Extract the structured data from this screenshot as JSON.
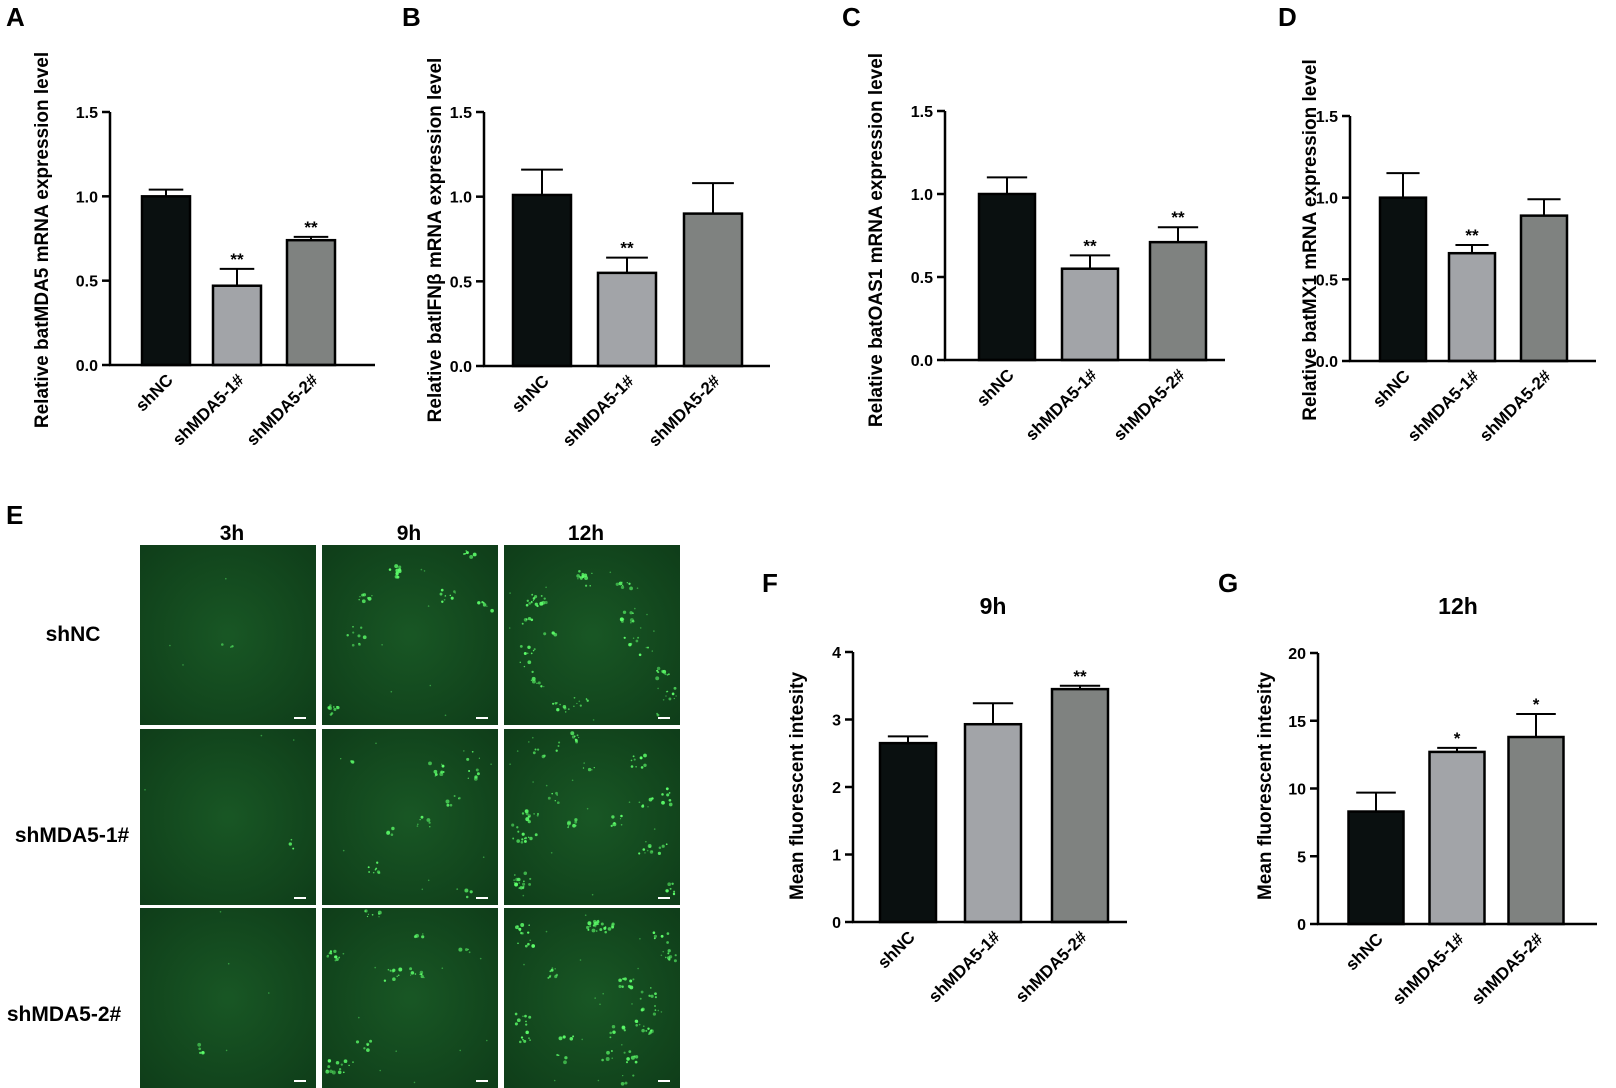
{
  "chart_data": [
    {
      "panel": "A",
      "type": "bar",
      "categories": [
        "shNC",
        "shMDA5-1#",
        "shMDA5-2#"
      ],
      "values": [
        1.0,
        0.47,
        0.74
      ],
      "errors": [
        0.04,
        0.1,
        0.02
      ],
      "significance": [
        "",
        "**",
        "**"
      ],
      "ylabel": "Relative batMDA5 mRNA expression level",
      "ylim": [
        0,
        1.5
      ],
      "yticks": [
        "0.0",
        "0.5",
        "1.0",
        "1.5"
      ],
      "colors": [
        "#0a1010",
        "#a2a4a8",
        "#7f8280"
      ]
    },
    {
      "panel": "B",
      "type": "bar",
      "categories": [
        "shNC",
        "shMDA5-1#",
        "shMDA5-2#"
      ],
      "values": [
        1.01,
        0.55,
        0.9
      ],
      "errors": [
        0.15,
        0.09,
        0.18
      ],
      "significance": [
        "",
        "**",
        ""
      ],
      "ylabel": "Relative batIFNβ mRNA expression level",
      "ylim": [
        0,
        1.5
      ],
      "yticks": [
        "0.0",
        "0.5",
        "1.0",
        "1.5"
      ],
      "colors": [
        "#0a1010",
        "#a2a4a8",
        "#7f8280"
      ]
    },
    {
      "panel": "C",
      "type": "bar",
      "categories": [
        "shNC",
        "shMDA5-1#",
        "shMDA5-2#"
      ],
      "values": [
        1.0,
        0.55,
        0.71
      ],
      "errors": [
        0.1,
        0.08,
        0.09
      ],
      "significance": [
        "",
        "**",
        "**"
      ],
      "ylabel": "Relative  batOAS1 mRNA expression level",
      "ylim": [
        0,
        1.5
      ],
      "yticks": [
        "0.0",
        "0.5",
        "1.0",
        "1.5"
      ],
      "colors": [
        "#0a1010",
        "#a2a4a8",
        "#7f8280"
      ]
    },
    {
      "panel": "D",
      "type": "bar",
      "categories": [
        "shNC",
        "shMDA5-1#",
        "shMDA5-2#"
      ],
      "values": [
        1.0,
        0.66,
        0.89
      ],
      "errors": [
        0.15,
        0.05,
        0.1
      ],
      "significance": [
        "",
        "**",
        ""
      ],
      "ylabel": "Relative batMX1 mRNA expression level",
      "ylim": [
        0,
        1.5
      ],
      "yticks": [
        "0.0",
        "0.5",
        "1.0",
        "1.5"
      ],
      "colors": [
        "#0a1010",
        "#a2a4a8",
        "#7f8280"
      ]
    },
    {
      "panel": "F",
      "type": "bar",
      "title": "9h",
      "categories": [
        "shNC",
        "shMDA5-1#",
        "shMDA5-2#"
      ],
      "values": [
        2.65,
        2.93,
        3.45
      ],
      "errors": [
        0.1,
        0.31,
        0.05
      ],
      "significance": [
        "",
        "",
        "**"
      ],
      "ylabel": "Mean fluorescent intesity",
      "ylim": [
        0,
        4
      ],
      "yticks": [
        "0",
        "1",
        "2",
        "3",
        "4"
      ],
      "colors": [
        "#0a1010",
        "#a2a4a8",
        "#7f8280"
      ]
    },
    {
      "panel": "G",
      "type": "bar",
      "title": "12h",
      "categories": [
        "shNC",
        "shMDA5-1#",
        "shMDA5-2#"
      ],
      "values": [
        8.3,
        12.7,
        13.8
      ],
      "errors": [
        1.4,
        0.3,
        1.7
      ],
      "significance": [
        "",
        "*",
        "*"
      ],
      "ylabel": "Mean fluorescent intesity",
      "ylim": [
        0,
        20
      ],
      "yticks": [
        "0",
        "5",
        "10",
        "15",
        "20"
      ],
      "colors": [
        "#0a1010",
        "#a2a4a8",
        "#7f8280"
      ]
    }
  ],
  "panel_e": {
    "letter": "E",
    "columns": [
      "3h",
      "9h",
      "12h"
    ],
    "rows": [
      "shNC",
      "shMDA5-1#",
      "shMDA5-2#"
    ],
    "image_background": "#124a1e",
    "spot_color": "#5dff6a",
    "signal_level": [
      [
        0.03,
        0.35,
        0.8
      ],
      [
        0.03,
        0.4,
        0.95
      ],
      [
        0.05,
        0.45,
        1.0
      ]
    ]
  }
}
